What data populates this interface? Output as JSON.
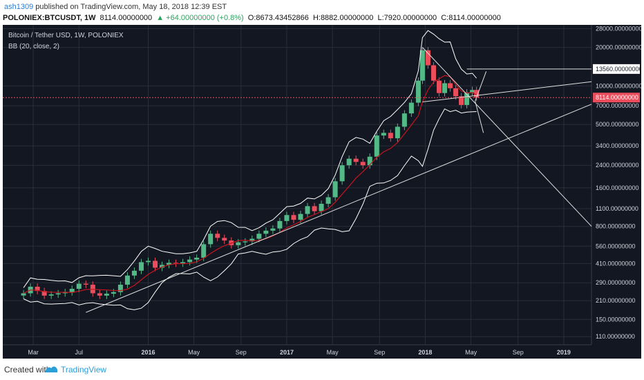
{
  "header": {
    "user": "ash1309",
    "published_text": "published on TradingView.com, May 18, 2018 12:39 EST",
    "symbol": "POLONIEX:BTCUSDT, 1W",
    "price": "8114.00000000",
    "change": "▲ +64.00000000 (+0.8%)",
    "open": "O:8673.43452866",
    "high": "H:8882.00000000",
    "low": "L:7920.00000000",
    "close": "C:8114.00000000"
  },
  "legend": {
    "symbol_title": "Bitcoin / Tether USD, 1W, POLONIEX",
    "indicator_title": "BB (20, close, 2)"
  },
  "footer": {
    "created_with": "Created with",
    "brand": "TradingView"
  },
  "colors": {
    "background": "#131722",
    "up": "#53b987",
    "down": "#eb4d5c",
    "basis": "#c8141e",
    "band": "#ffffff",
    "grid": "#2a2e39",
    "axis_text": "#d1d4dc",
    "price_marker": "#eb4d5c"
  },
  "chart_data": {
    "type": "candlestick",
    "scale": "log",
    "price_ticks": [
      110,
      150,
      210,
      290,
      410,
      560,
      800,
      1100,
      1600,
      2400,
      3400,
      5000,
      7000,
      10000,
      20000,
      28000
    ],
    "price_tick_labels": [
      "110.00000000",
      "150.00000000",
      "210.00000000",
      "290.00000000",
      "410.00000000",
      "560.00000000",
      "800.00000000",
      "1100.00000000",
      "1600.00000000",
      "2400.00000000",
      "3400.00000000",
      "5000.00000000",
      "7000.00000000",
      "10000.00000000",
      "20000.00000000",
      "28000.00000000"
    ],
    "time_labels": [
      {
        "label": "Mar",
        "t": 2015.17
      },
      {
        "label": "Jul",
        "t": 2015.5
      },
      {
        "label": "2016",
        "t": 2016.0
      },
      {
        "label": "May",
        "t": 2016.33
      },
      {
        "label": "Sep",
        "t": 2016.67
      },
      {
        "label": "2017",
        "t": 2017.0
      },
      {
        "label": "May",
        "t": 2017.33
      },
      {
        "label": "Sep",
        "t": 2017.67
      },
      {
        "label": "2018",
        "t": 2018.0
      },
      {
        "label": "May",
        "t": 2018.33
      },
      {
        "label": "Sep",
        "t": 2018.67
      },
      {
        "label": "2019",
        "t": 2019.0
      }
    ],
    "time_range": [
      2014.95,
      2019.2
    ],
    "price_range": [
      95,
      30000
    ],
    "current_price": 8114,
    "current_price_label": "8114.00000000",
    "annotation_price": 13560,
    "annotation_label": "13560.00000000",
    "close_series": [
      {
        "t": 2015.1,
        "c": 240
      },
      {
        "t": 2015.15,
        "c": 270
      },
      {
        "t": 2015.2,
        "c": 250
      },
      {
        "t": 2015.25,
        "c": 230
      },
      {
        "t": 2015.3,
        "c": 235
      },
      {
        "t": 2015.35,
        "c": 240
      },
      {
        "t": 2015.4,
        "c": 245
      },
      {
        "t": 2015.45,
        "c": 260
      },
      {
        "t": 2015.5,
        "c": 285
      },
      {
        "t": 2015.55,
        "c": 280
      },
      {
        "t": 2015.6,
        "c": 240
      },
      {
        "t": 2015.65,
        "c": 230
      },
      {
        "t": 2015.7,
        "c": 238
      },
      {
        "t": 2015.75,
        "c": 245
      },
      {
        "t": 2015.8,
        "c": 280
      },
      {
        "t": 2015.85,
        "c": 330
      },
      {
        "t": 2015.9,
        "c": 360
      },
      {
        "t": 2015.95,
        "c": 420
      },
      {
        "t": 2016.0,
        "c": 430
      },
      {
        "t": 2016.05,
        "c": 380
      },
      {
        "t": 2016.1,
        "c": 400
      },
      {
        "t": 2016.15,
        "c": 415
      },
      {
        "t": 2016.2,
        "c": 410
      },
      {
        "t": 2016.25,
        "c": 420
      },
      {
        "t": 2016.3,
        "c": 440
      },
      {
        "t": 2016.35,
        "c": 455
      },
      {
        "t": 2016.4,
        "c": 580
      },
      {
        "t": 2016.45,
        "c": 700
      },
      {
        "t": 2016.5,
        "c": 650
      },
      {
        "t": 2016.55,
        "c": 620
      },
      {
        "t": 2016.6,
        "c": 570
      },
      {
        "t": 2016.65,
        "c": 600
      },
      {
        "t": 2016.7,
        "c": 610
      },
      {
        "t": 2016.75,
        "c": 640
      },
      {
        "t": 2016.8,
        "c": 700
      },
      {
        "t": 2016.85,
        "c": 740
      },
      {
        "t": 2016.9,
        "c": 770
      },
      {
        "t": 2016.95,
        "c": 880
      },
      {
        "t": 2017.0,
        "c": 980
      },
      {
        "t": 2017.05,
        "c": 900
      },
      {
        "t": 2017.1,
        "c": 1000
      },
      {
        "t": 2017.15,
        "c": 1150
      },
      {
        "t": 2017.2,
        "c": 1050
      },
      {
        "t": 2017.25,
        "c": 1200
      },
      {
        "t": 2017.3,
        "c": 1350
      },
      {
        "t": 2017.35,
        "c": 1800
      },
      {
        "t": 2017.4,
        "c": 2400
      },
      {
        "t": 2017.45,
        "c": 2700
      },
      {
        "t": 2017.5,
        "c": 2550
      },
      {
        "t": 2017.55,
        "c": 2400
      },
      {
        "t": 2017.6,
        "c": 2800
      },
      {
        "t": 2017.65,
        "c": 4100
      },
      {
        "t": 2017.7,
        "c": 4300
      },
      {
        "t": 2017.75,
        "c": 3900
      },
      {
        "t": 2017.8,
        "c": 4800
      },
      {
        "t": 2017.85,
        "c": 6100
      },
      {
        "t": 2017.9,
        "c": 7400
      },
      {
        "t": 2017.95,
        "c": 11000
      },
      {
        "t": 2017.98,
        "c": 19000
      },
      {
        "t": 2018.02,
        "c": 14500
      },
      {
        "t": 2018.06,
        "c": 11000
      },
      {
        "t": 2018.1,
        "c": 8800
      },
      {
        "t": 2018.14,
        "c": 10500
      },
      {
        "t": 2018.18,
        "c": 9600
      },
      {
        "t": 2018.22,
        "c": 8300
      },
      {
        "t": 2018.26,
        "c": 7100
      },
      {
        "t": 2018.3,
        "c": 8900
      },
      {
        "t": 2018.34,
        "c": 9300
      },
      {
        "t": 2018.37,
        "c": 8114
      }
    ]
  }
}
